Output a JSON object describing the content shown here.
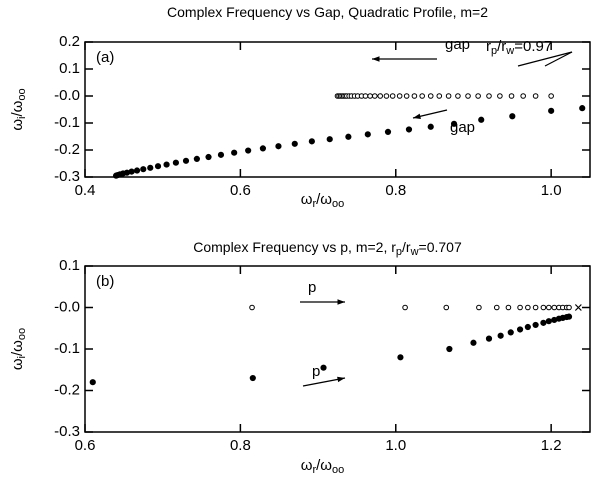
{
  "chart_data": [
    {
      "type": "scatter",
      "title": [
        "Complex Frequency vs Gap, Quadratic Profile, m=2"
      ],
      "xlabel": [
        "ω",
        "r",
        "/ω",
        "oo"
      ],
      "ylabel": [
        "ω",
        "i",
        "/ω",
        "oo"
      ],
      "xlim": [
        0.4,
        1.05
      ],
      "xticks": [
        0.4,
        0.6,
        0.8,
        {
          "value": 1,
          "label": "1.0"
        }
      ],
      "ylim": [
        -0.3,
        0.2
      ],
      "yticks": [
        0.2,
        0.1,
        {
          "value": 0,
          "label": "-0.0"
        },
        -0.1,
        -0.2,
        -0.3
      ],
      "series": [
        {
          "marker": "open",
          "color": "#000000",
          "x": [
            0.725,
            0.727,
            0.729,
            0.731,
            0.733,
            0.735,
            0.737,
            0.74,
            0.743,
            0.747,
            0.751,
            0.756,
            0.761,
            0.767,
            0.773,
            0.78,
            0.788,
            0.796,
            0.805,
            0.814,
            0.824,
            0.834,
            0.845,
            0.856,
            0.868,
            0.88,
            0.893,
            0.906,
            0.92,
            0.934,
            0.949,
            0.964,
            0.98,
            1.0
          ],
          "values": [
            0,
            0,
            0,
            0,
            0,
            0,
            0,
            0,
            0,
            0,
            0,
            0,
            0,
            0,
            0,
            0,
            0,
            0,
            0,
            0,
            0,
            0,
            0,
            0,
            0,
            0,
            0,
            0,
            0,
            0,
            0,
            0,
            0,
            0
          ]
        },
        {
          "marker": "filled",
          "color": "#000000",
          "x": [
            0.44,
            0.442,
            0.445,
            0.449,
            0.454,
            0.46,
            0.467,
            0.475,
            0.484,
            0.494,
            0.505,
            0.517,
            0.53,
            0.544,
            0.559,
            0.575,
            0.592,
            0.61,
            0.629,
            0.649,
            0.67,
            0.692,
            0.715,
            0.739,
            0.764,
            0.79,
            0.817,
            0.845,
            0.875,
            0.91,
            0.95,
            1.0,
            1.04
          ],
          "values": [
            -0.295,
            -0.293,
            -0.29,
            -0.287,
            -0.284,
            -0.28,
            -0.276,
            -0.271,
            -0.266,
            -0.26,
            -0.254,
            -0.247,
            -0.24,
            -0.233,
            -0.226,
            -0.218,
            -0.21,
            -0.202,
            -0.194,
            -0.186,
            -0.177,
            -0.168,
            -0.16,
            -0.151,
            -0.142,
            -0.133,
            -0.124,
            -0.114,
            -0.103,
            -0.088,
            -0.075,
            -0.055,
            -0.045
          ]
        }
      ],
      "annotations": [
        {
          "text": [
            "(a)"
          ]
        },
        {
          "text": [
            "gap"
          ]
        },
        {
          "text": [
            "gap"
          ]
        },
        {
          "text": [
            "r",
            "p",
            "/r",
            "w",
            "=0.97"
          ]
        }
      ]
    },
    {
      "type": "scatter",
      "title": [
        "Complex Frequency vs p, m=2, r",
        "p",
        "/r",
        "w",
        "=0.707"
      ],
      "xlabel": [
        "ω",
        "r",
        "/ω",
        "oo"
      ],
      "ylabel": [
        "ω",
        "i",
        "/ω",
        "oo"
      ],
      "xlim": [
        0.6,
        1.25
      ],
      "xticks": [
        0.6,
        0.8,
        {
          "value": 1,
          "label": "1.0"
        },
        1.2
      ],
      "ylim": [
        -0.3,
        0.1
      ],
      "yticks": [
        0.1,
        {
          "value": 0,
          "label": "-0.0"
        },
        -0.1,
        -0.2,
        -0.3
      ],
      "series": [
        {
          "marker": "open",
          "color": "#000000",
          "x": [
            0.815,
            1.012,
            1.065,
            1.107,
            1.13,
            1.145,
            1.16,
            1.17,
            1.18,
            1.19,
            1.197,
            1.204,
            1.21,
            1.215,
            1.22,
            1.223
          ],
          "values": [
            0,
            0,
            0,
            0,
            0,
            0,
            0,
            0,
            0,
            0,
            0,
            0,
            0,
            0,
            0,
            0
          ]
        },
        {
          "marker": "filled",
          "color": "#000000",
          "x": [
            0.61,
            0.816,
            0.907,
            1.006,
            1.069,
            1.1,
            1.12,
            1.135,
            1.148,
            1.16,
            1.17,
            1.18,
            1.19,
            1.197,
            1.204,
            1.21,
            1.215,
            1.22,
            1.223
          ],
          "values": [
            -0.18,
            -0.17,
            -0.145,
            -0.12,
            -0.1,
            -0.085,
            -0.075,
            -0.068,
            -0.06,
            -0.053,
            -0.047,
            -0.042,
            -0.037,
            -0.033,
            -0.03,
            -0.027,
            -0.025,
            -0.023,
            -0.022
          ]
        },
        {
          "marker": "cross",
          "color": "#000000",
          "x": [
            1.235
          ],
          "values": [
            0
          ]
        }
      ],
      "annotations": [
        {
          "text": [
            "(b)"
          ]
        },
        {
          "text": [
            "p"
          ]
        },
        {
          "text": [
            "p"
          ]
        }
      ]
    }
  ]
}
